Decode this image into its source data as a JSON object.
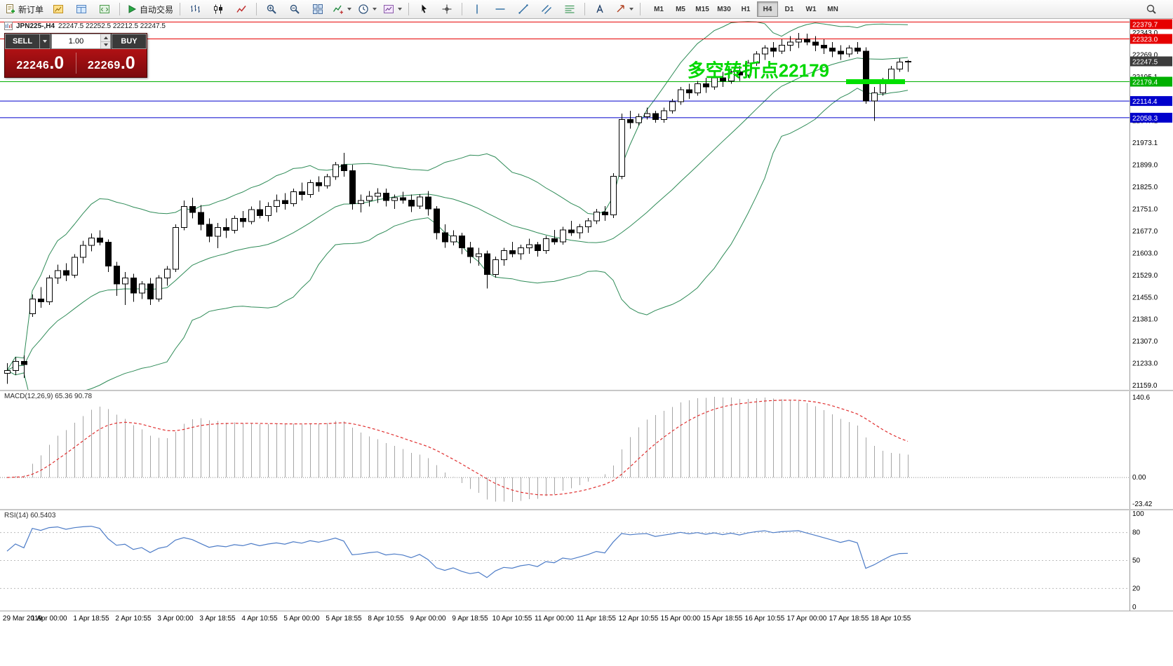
{
  "toolbar": {
    "new_order": "新订单",
    "auto_trading": "自动交易",
    "timeframes": [
      "M1",
      "M5",
      "M15",
      "M30",
      "H1",
      "H4",
      "D1",
      "W1",
      "MN"
    ],
    "active_timeframe": "H4"
  },
  "chart_header": {
    "symbol_period": "JPN225-,H4",
    "ohlc": "22247.5 22252.5 22212.5 22247.5"
  },
  "trade_panel": {
    "sell_label": "SELL",
    "buy_label": "BUY",
    "volume": "1.00",
    "sell_price_int": "22246",
    "sell_price_frac": ".0",
    "buy_price_int": "22269",
    "buy_price_frac": ".0"
  },
  "annotation": {
    "text": "多空转折点22179",
    "color": "#00d800"
  },
  "highlight_segment": {
    "value": 22179.4,
    "from_bar": 100,
    "to_bar": 106,
    "color": "#00e000"
  },
  "price_axis": {
    "grid_labels": [
      {
        "text": "22343.0",
        "value": 22343.0
      },
      {
        "text": "22269.0",
        "value": 22269.0
      },
      {
        "text": "22195.1",
        "value": 22195.1
      },
      {
        "text": "22047.1",
        "value": 22047.1
      },
      {
        "text": "21973.1",
        "value": 21973.1
      },
      {
        "text": "21899.0",
        "value": 21899.0
      },
      {
        "text": "21825.0",
        "value": 21825.0
      },
      {
        "text": "21751.0",
        "value": 21751.0
      },
      {
        "text": "21677.0",
        "value": 21677.0
      },
      {
        "text": "21603.0",
        "value": 21603.0
      },
      {
        "text": "21529.0",
        "value": 21529.0
      },
      {
        "text": "21455.0",
        "value": 21455.0
      },
      {
        "text": "21381.0",
        "value": 21381.0
      },
      {
        "text": "21307.0",
        "value": 21307.0
      },
      {
        "text": "21233.0",
        "value": 21233.0
      },
      {
        "text": "21159.0",
        "value": 21159.0
      }
    ],
    "tags": [
      {
        "text": "22379.7",
        "value": 22379.7,
        "bg": "#e60000",
        "line": true
      },
      {
        "text": "22323.0",
        "value": 22323.0,
        "bg": "#e60000",
        "line": true
      },
      {
        "text": "22247.5",
        "value": 22247.5,
        "bg": "#3c3c3c",
        "line": false
      },
      {
        "text": "22179.4",
        "value": 22179.4,
        "bg": "#00b000",
        "line": true
      },
      {
        "text": "22114.4",
        "value": 22114.4,
        "bg": "#0000cc",
        "line": true
      },
      {
        "text": "22058.3",
        "value": 22058.3,
        "bg": "#0000cc",
        "line": true
      }
    ]
  },
  "macd_panel": {
    "label": "MACD(12,26,9) 65.36 90.78",
    "axis_max": "140.6",
    "axis_zero": "0.00",
    "axis_min": "-23.42"
  },
  "rsi_panel": {
    "label": "RSI(14) 60.5403",
    "levels": [
      100,
      80,
      50,
      20,
      0
    ]
  },
  "time_axis": [
    "29 Mar 2019",
    "1 Apr 00:00",
    "1 Apr 18:55",
    "2 Apr 10:55",
    "3 Apr 00:00",
    "3 Apr 18:55",
    "4 Apr 10:55",
    "5 Apr 00:00",
    "5 Apr 18:55",
    "8 Apr 10:55",
    "9 Apr 00:00",
    "9 Apr 18:55",
    "10 Apr 10:55",
    "11 Apr 00:00",
    "11 Apr 18:55",
    "12 Apr 10:55",
    "15 Apr 00:00",
    "15 Apr 18:55",
    "16 Apr 10:55",
    "17 Apr 00:00",
    "17 Apr 18:55",
    "18 Apr 10:55"
  ],
  "styles": {
    "band_color": "#2e8b57",
    "up_candle": "#ffffff",
    "down_candle": "#000000",
    "candle_border": "#000000",
    "histogram_color": "#a6a6a6",
    "signal_color": "#e03030",
    "rsi_color": "#4d7cc7",
    "axis_line": "#999999"
  },
  "chart_data": {
    "type": "candlestick",
    "symbol": "JPN225-",
    "timeframe": "H4",
    "indicators": [
      "Bollinger Bands (20,2)",
      "MACD(12,26,9)",
      "RSI(14)"
    ],
    "y_range": [
      21145,
      22390
    ],
    "candles": [
      [
        21200,
        21235,
        21165,
        21210
      ],
      [
        21210,
        21255,
        21195,
        21240
      ],
      [
        21240,
        21260,
        21185,
        21230
      ],
      [
        21400,
        21465,
        21390,
        21450
      ],
      [
        21450,
        21490,
        21420,
        21440
      ],
      [
        21440,
        21530,
        21430,
        21520
      ],
      [
        21520,
        21565,
        21500,
        21545
      ],
      [
        21545,
        21570,
        21510,
        21530
      ],
      [
        21530,
        21600,
        21520,
        21590
      ],
      [
        21590,
        21645,
        21570,
        21630
      ],
      [
        21630,
        21670,
        21610,
        21655
      ],
      [
        21655,
        21680,
        21630,
        21640
      ],
      [
        21640,
        21650,
        21540,
        21560
      ],
      [
        21560,
        21575,
        21460,
        21500
      ],
      [
        21500,
        21540,
        21430,
        21520
      ],
      [
        21520,
        21535,
        21440,
        21470
      ],
      [
        21470,
        21510,
        21450,
        21500
      ],
      [
        21500,
        21520,
        21430,
        21450
      ],
      [
        21450,
        21530,
        21440,
        21520
      ],
      [
        21520,
        21560,
        21495,
        21550
      ],
      [
        21550,
        21700,
        21540,
        21690
      ],
      [
        21690,
        21780,
        21680,
        21760
      ],
      [
        21760,
        21790,
        21720,
        21740
      ],
      [
        21740,
        21765,
        21680,
        21700
      ],
      [
        21700,
        21720,
        21640,
        21660
      ],
      [
        21660,
        21705,
        21620,
        21690
      ],
      [
        21690,
        21720,
        21655,
        21680
      ],
      [
        21680,
        21730,
        21670,
        21720
      ],
      [
        21720,
        21745,
        21690,
        21710
      ],
      [
        21710,
        21760,
        21700,
        21750
      ],
      [
        21750,
        21780,
        21720,
        21730
      ],
      [
        21730,
        21775,
        21710,
        21760
      ],
      [
        21760,
        21800,
        21740,
        21780
      ],
      [
        21780,
        21805,
        21750,
        21770
      ],
      [
        21770,
        21820,
        21760,
        21810
      ],
      [
        21810,
        21840,
        21780,
        21800
      ],
      [
        21800,
        21850,
        21790,
        21840
      ],
      [
        21840,
        21862,
        21810,
        21830
      ],
      [
        21830,
        21870,
        21820,
        21860
      ],
      [
        21860,
        21910,
        21850,
        21900
      ],
      [
        21900,
        21940,
        21860,
        21880
      ],
      [
        21880,
        21900,
        21750,
        21770
      ],
      [
        21770,
        21800,
        21740,
        21780
      ],
      [
        21780,
        21812,
        21760,
        21795
      ],
      [
        21795,
        21822,
        21772,
        21805
      ],
      [
        21805,
        21820,
        21760,
        21780
      ],
      [
        21780,
        21800,
        21752,
        21790
      ],
      [
        21790,
        21810,
        21770,
        21782
      ],
      [
        21782,
        21800,
        21742,
        21762
      ],
      [
        21762,
        21802,
        21752,
        21792
      ],
      [
        21792,
        21812,
        21730,
        21752
      ],
      [
        21752,
        21762,
        21650,
        21672
      ],
      [
        21672,
        21700,
        21622,
        21642
      ],
      [
        21642,
        21680,
        21630,
        21662
      ],
      [
        21662,
        21672,
        21600,
        21622
      ],
      [
        21622,
        21642,
        21570,
        21592
      ],
      [
        21592,
        21622,
        21562,
        21602
      ],
      [
        21602,
        21612,
        21485,
        21532
      ],
      [
        21532,
        21592,
        21522,
        21582
      ],
      [
        21582,
        21622,
        21562,
        21612
      ],
      [
        21612,
        21642,
        21590,
        21602
      ],
      [
        21602,
        21632,
        21582,
        21622
      ],
      [
        21622,
        21652,
        21602,
        21632
      ],
      [
        21632,
        21642,
        21592,
        21612
      ],
      [
        21612,
        21662,
        21602,
        21652
      ],
      [
        21652,
        21682,
        21632,
        21642
      ],
      [
        21642,
        21692,
        21632,
        21682
      ],
      [
        21682,
        21712,
        21662,
        21672
      ],
      [
        21672,
        21702,
        21652,
        21692
      ],
      [
        21692,
        21722,
        21672,
        21712
      ],
      [
        21712,
        21752,
        21702,
        21742
      ],
      [
        21742,
        21762,
        21712,
        21732
      ],
      [
        21732,
        21872,
        21722,
        21862
      ],
      [
        21862,
        22072,
        21852,
        22052
      ],
      [
        22052,
        22082,
        22022,
        22042
      ],
      [
        22042,
        22072,
        22032,
        22062
      ],
      [
        22062,
        22092,
        22052,
        22072
      ],
      [
        22072,
        22082,
        22042,
        22052
      ],
      [
        22052,
        22092,
        22042,
        22082
      ],
      [
        22082,
        22122,
        22072,
        22112
      ],
      [
        22112,
        22162,
        22102,
        22152
      ],
      [
        22152,
        22172,
        22122,
        22142
      ],
      [
        22142,
        22182,
        22132,
        22172
      ],
      [
        22172,
        22192,
        22142,
        22162
      ],
      [
        22162,
        22202,
        22152,
        22192
      ],
      [
        22192,
        22212,
        22162,
        22182
      ],
      [
        22182,
        22222,
        22172,
        22212
      ],
      [
        22212,
        22232,
        22182,
        22202
      ],
      [
        22202,
        22252,
        22192,
        22242
      ],
      [
        22242,
        22282,
        22232,
        22272
      ],
      [
        22272,
        22302,
        22252,
        22292
      ],
      [
        22292,
        22312,
        22262,
        22282
      ],
      [
        22282,
        22322,
        22272,
        22302
      ],
      [
        22302,
        22332,
        22282,
        22312
      ],
      [
        22312,
        22343,
        22292,
        22322
      ],
      [
        22322,
        22340,
        22302,
        22312
      ],
      [
        22312,
        22332,
        22282,
        22302
      ],
      [
        22302,
        22322,
        22272,
        22292
      ],
      [
        22292,
        22312,
        22262,
        22282
      ],
      [
        22282,
        22302,
        22252,
        22272
      ],
      [
        22272,
        22302,
        22262,
        22292
      ],
      [
        22292,
        22312,
        22272,
        22282
      ],
      [
        22282,
        22295,
        22105,
        22115
      ],
      [
        22115,
        22162,
        22047,
        22142
      ],
      [
        22142,
        22192,
        22132,
        22182
      ],
      [
        22182,
        22232,
        22172,
        22222
      ],
      [
        22222,
        22257,
        22212,
        22245
      ],
      [
        22247.5,
        22252.5,
        22212.5,
        22247.5
      ]
    ]
  }
}
